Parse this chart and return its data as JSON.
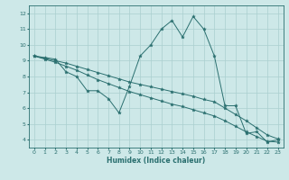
{
  "xlabel": "Humidex (Indice chaleur)",
  "ylabel": "",
  "xlim": [
    -0.5,
    23.5
  ],
  "ylim": [
    3.5,
    12.5
  ],
  "xticks": [
    0,
    1,
    2,
    3,
    4,
    5,
    6,
    7,
    8,
    9,
    10,
    11,
    12,
    13,
    14,
    15,
    16,
    17,
    18,
    19,
    20,
    21,
    22,
    23
  ],
  "yticks": [
    4,
    5,
    6,
    7,
    8,
    9,
    10,
    11,
    12
  ],
  "bg_color": "#cde8e8",
  "grid_color": "#aacfcf",
  "line_color": "#2a6f6f",
  "lines": [
    {
      "x": [
        0,
        1,
        2,
        3,
        4,
        5,
        6,
        7,
        8,
        9,
        10,
        11,
        12,
        13,
        14,
        15,
        16,
        17,
        18,
        19,
        20,
        21,
        22,
        23
      ],
      "y": [
        9.3,
        9.2,
        9.1,
        8.3,
        8.0,
        7.1,
        7.1,
        6.6,
        5.7,
        7.4,
        9.3,
        10.0,
        11.0,
        11.55,
        10.5,
        11.8,
        11.0,
        9.3,
        6.15,
        6.15,
        4.4,
        4.5,
        3.85,
        4.0
      ]
    },
    {
      "x": [
        0,
        1,
        2,
        3,
        4,
        5,
        6,
        7,
        8,
        9,
        10,
        11,
        12,
        13,
        14,
        15,
        16,
        17,
        18,
        19,
        20,
        21,
        22,
        23
      ],
      "y": [
        9.3,
        9.15,
        9.0,
        8.85,
        8.65,
        8.45,
        8.25,
        8.05,
        7.85,
        7.65,
        7.5,
        7.35,
        7.2,
        7.05,
        6.9,
        6.75,
        6.55,
        6.4,
        6.0,
        5.6,
        5.2,
        4.75,
        4.3,
        4.05
      ]
    },
    {
      "x": [
        0,
        1,
        2,
        3,
        4,
        5,
        6,
        7,
        8,
        9,
        10,
        11,
        12,
        13,
        14,
        15,
        16,
        17,
        18,
        19,
        20,
        21,
        22,
        23
      ],
      "y": [
        9.3,
        9.1,
        8.9,
        8.65,
        8.4,
        8.1,
        7.8,
        7.55,
        7.3,
        7.05,
        6.85,
        6.65,
        6.45,
        6.25,
        6.1,
        5.9,
        5.7,
        5.5,
        5.2,
        4.85,
        4.5,
        4.2,
        3.9,
        3.85
      ]
    }
  ],
  "figsize": [
    3.2,
    2.0
  ],
  "dpi": 100
}
